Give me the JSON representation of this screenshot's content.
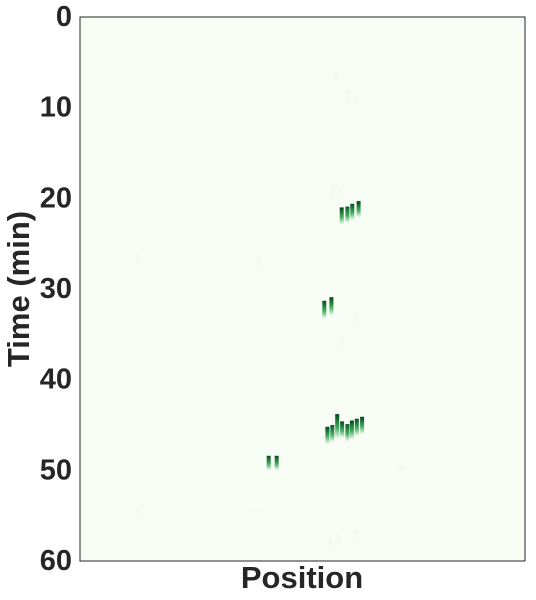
{
  "chart_data": {
    "type": "heatmap",
    "title": "",
    "xlabel": "Position",
    "ylabel": "Time (min)",
    "ylim": [
      0,
      60
    ],
    "y_inverted": true,
    "yticks": [
      0,
      10,
      20,
      30,
      40,
      50,
      60
    ],
    "xticks": [],
    "grid": false,
    "x_range": [
      0,
      1
    ],
    "colormap": "Greens",
    "colors": {
      "background": "#f7fcf5",
      "low": "#c7e9c0",
      "mid": "#41ab5d",
      "high": "#00441b",
      "frame": "#262626"
    },
    "events": [
      {
        "x": 0.588,
        "t0": 21.0,
        "t1": 22.9,
        "intensity": 1.0
      },
      {
        "x": 0.601,
        "t0": 20.9,
        "t1": 22.7,
        "intensity": 0.9
      },
      {
        "x": 0.612,
        "t0": 20.6,
        "t1": 22.4,
        "intensity": 0.95
      },
      {
        "x": 0.626,
        "t0": 20.3,
        "t1": 22.1,
        "intensity": 1.0
      },
      {
        "x": 0.549,
        "t0": 31.3,
        "t1": 33.3,
        "intensity": 0.95
      },
      {
        "x": 0.565,
        "t0": 30.9,
        "t1": 32.9,
        "intensity": 1.0
      },
      {
        "x": 0.556,
        "t0": 45.2,
        "t1": 47.1,
        "intensity": 1.0
      },
      {
        "x": 0.567,
        "t0": 45.0,
        "t1": 46.9,
        "intensity": 0.9
      },
      {
        "x": 0.578,
        "t0": 43.8,
        "t1": 46.5,
        "intensity": 1.0
      },
      {
        "x": 0.589,
        "t0": 44.6,
        "t1": 46.4,
        "intensity": 0.95
      },
      {
        "x": 0.601,
        "t0": 44.9,
        "t1": 46.8,
        "intensity": 0.9
      },
      {
        "x": 0.611,
        "t0": 44.5,
        "t1": 46.6,
        "intensity": 1.0
      },
      {
        "x": 0.622,
        "t0": 44.3,
        "t1": 46.2,
        "intensity": 0.95
      },
      {
        "x": 0.634,
        "t0": 44.1,
        "t1": 46.0,
        "intensity": 1.0
      },
      {
        "x": 0.424,
        "t0": 48.4,
        "t1": 50.0,
        "intensity": 0.95
      },
      {
        "x": 0.442,
        "t0": 48.4,
        "t1": 50.0,
        "intensity": 0.95
      },
      {
        "x": 0.575,
        "t0": 6.0,
        "t1": 8.0,
        "intensity": 0.05
      },
      {
        "x": 0.6,
        "t0": 8.0,
        "t1": 10.0,
        "intensity": 0.06
      },
      {
        "x": 0.62,
        "t0": 8.5,
        "t1": 10.5,
        "intensity": 0.05
      },
      {
        "x": 0.57,
        "t0": 18.5,
        "t1": 20.5,
        "intensity": 0.06
      },
      {
        "x": 0.585,
        "t0": 18.8,
        "t1": 20.8,
        "intensity": 0.05
      },
      {
        "x": 0.13,
        "t0": 26.0,
        "t1": 28.0,
        "intensity": 0.04
      },
      {
        "x": 0.4,
        "t0": 26.5,
        "t1": 28.5,
        "intensity": 0.04
      },
      {
        "x": 0.62,
        "t0": 32.5,
        "t1": 34.5,
        "intensity": 0.05
      },
      {
        "x": 0.59,
        "t0": 35.5,
        "t1": 37.5,
        "intensity": 0.05
      },
      {
        "x": 0.72,
        "t0": 49.5,
        "t1": 51.0,
        "intensity": 0.06
      },
      {
        "x": 0.13,
        "t0": 54.0,
        "t1": 56.0,
        "intensity": 0.04
      },
      {
        "x": 0.395,
        "t0": 54.0,
        "t1": 56.0,
        "intensity": 0.04
      },
      {
        "x": 0.56,
        "t0": 57.5,
        "t1": 59.5,
        "intensity": 0.06
      },
      {
        "x": 0.58,
        "t0": 57.0,
        "t1": 59.0,
        "intensity": 0.05
      },
      {
        "x": 0.62,
        "t0": 56.5,
        "t1": 58.5,
        "intensity": 0.05
      }
    ]
  }
}
